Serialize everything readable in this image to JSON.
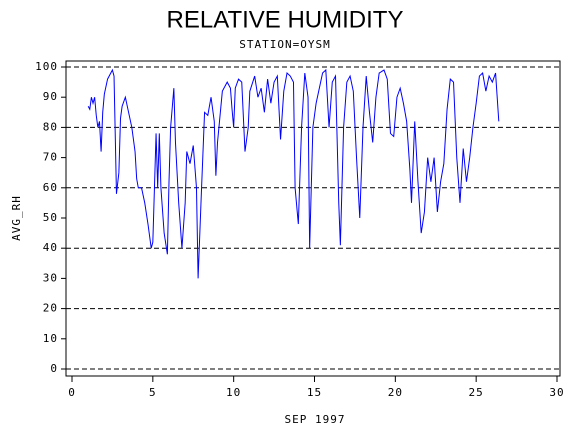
{
  "chart_data": {
    "type": "line",
    "title": "RELATIVE HUMIDITY",
    "subtitle": "STATION=OYSM",
    "x_label": "SEP 1997",
    "y_label": "AVG_RH",
    "xlim": [
      0,
      30
    ],
    "xticks": [
      0,
      5,
      10,
      15,
      20,
      25,
      30
    ],
    "ylim": [
      0,
      100
    ],
    "yticks": [
      0,
      10,
      20,
      30,
      40,
      50,
      60,
      70,
      80,
      90,
      100
    ],
    "ygrid": [
      0,
      20,
      40,
      60,
      80,
      100
    ],
    "series": [
      {
        "name": "AVG_RH",
        "color": "#0000ff",
        "x": [
          1.0,
          1.1,
          1.2,
          1.3,
          1.4,
          1.5,
          1.6,
          1.7,
          1.8,
          1.9,
          2.0,
          2.2,
          2.4,
          2.5,
          2.6,
          2.75,
          2.9,
          3.0,
          3.1,
          3.3,
          3.5,
          3.7,
          3.9,
          4.0,
          4.1,
          4.3,
          4.5,
          4.7,
          4.9,
          5.0,
          5.1,
          5.2,
          5.3,
          5.4,
          5.5,
          5.7,
          5.9,
          6.0,
          6.1,
          6.3,
          6.4,
          6.6,
          6.8,
          7.0,
          7.1,
          7.3,
          7.5,
          7.7,
          7.8,
          8.0,
          8.2,
          8.4,
          8.6,
          8.8,
          8.9,
          9.0,
          9.3,
          9.6,
          9.8,
          9.9,
          10.0,
          10.1,
          10.3,
          10.5,
          10.7,
          10.9,
          11.0,
          11.3,
          11.5,
          11.7,
          11.9,
          12.1,
          12.3,
          12.5,
          12.7,
          12.9,
          13.1,
          13.3,
          13.5,
          13.7,
          13.8,
          14.0,
          14.2,
          14.4,
          14.6,
          14.7,
          14.9,
          15.1,
          15.3,
          15.5,
          15.7,
          15.9,
          16.1,
          16.3,
          16.5,
          16.6,
          16.8,
          17.0,
          17.2,
          17.4,
          17.6,
          17.8,
          18.0,
          18.2,
          18.4,
          18.6,
          18.8,
          19.0,
          19.3,
          19.5,
          19.7,
          19.9,
          20.1,
          20.3,
          20.5,
          20.7,
          20.9,
          21.0,
          21.2,
          21.4,
          21.6,
          21.8,
          22.0,
          22.2,
          22.4,
          22.6,
          22.8,
          23.0,
          23.2,
          23.4,
          23.6,
          23.8,
          24.0,
          24.2,
          24.4,
          24.6,
          24.8,
          25.0,
          25.2,
          25.4,
          25.6,
          25.8,
          26.0,
          26.2,
          26.4
        ],
        "values": [
          87,
          86,
          90,
          88,
          90,
          84,
          80,
          82,
          72,
          85,
          91,
          96,
          98,
          99,
          97,
          58,
          65,
          83,
          87,
          90,
          85,
          80,
          72,
          63,
          60,
          60,
          55,
          48,
          40,
          42,
          60,
          78,
          60,
          78,
          60,
          45,
          38,
          62,
          80,
          93,
          75,
          55,
          40,
          55,
          72,
          68,
          74,
          60,
          30,
          58,
          85,
          84,
          90,
          82,
          64,
          75,
          92,
          95,
          93,
          86,
          80,
          93,
          96,
          95,
          72,
          80,
          92,
          97,
          90,
          93,
          85,
          96,
          88,
          95,
          97,
          76,
          92,
          98,
          97,
          95,
          60,
          48,
          80,
          98,
          90,
          40,
          80,
          88,
          93,
          98,
          99,
          80,
          95,
          97,
          55,
          41,
          80,
          95,
          97,
          92,
          70,
          50,
          80,
          97,
          85,
          75,
          90,
          98,
          99,
          96,
          78,
          77,
          90,
          93,
          88,
          82,
          66,
          55,
          82,
          62,
          45,
          52,
          70,
          62,
          70,
          52,
          62,
          68,
          86,
          96,
          95,
          70,
          55,
          73,
          62,
          70,
          80,
          88,
          97,
          98,
          92,
          97,
          95,
          98,
          82
        ]
      }
    ]
  }
}
